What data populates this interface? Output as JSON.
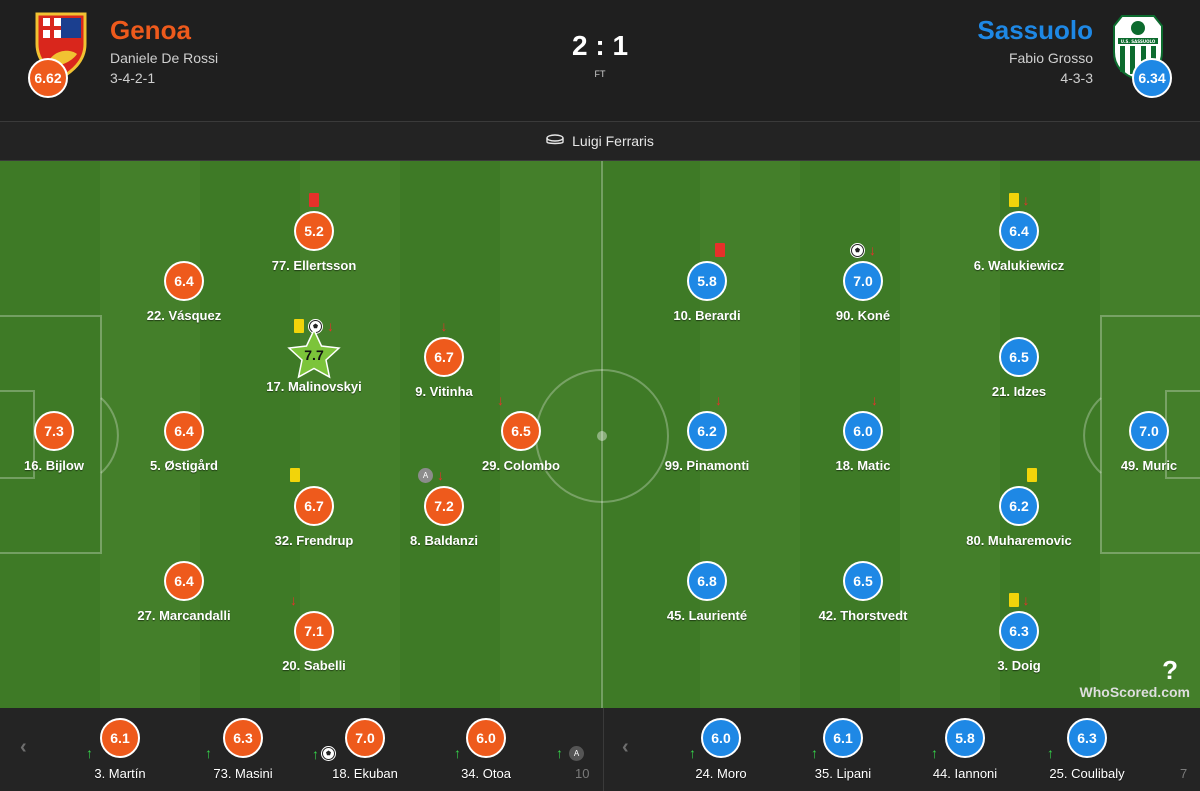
{
  "match": {
    "score": "2 : 1",
    "status": "FT",
    "venue": "Luigi Ferraris"
  },
  "home": {
    "name": "Genoa",
    "coach": "Daniele De Rossi",
    "formation": "3-4-2-1",
    "rating": "6.62",
    "color": "#ee5a1c"
  },
  "away": {
    "name": "Sassuolo",
    "coach": "Fabio Grosso",
    "formation": "4-3-3",
    "rating": "6.34",
    "color": "#1e88e5",
    "crest_text": "U.S. SASSUOLO"
  },
  "home_players": [
    {
      "label": "77. Ellertsson",
      "rating": "5.2",
      "red": true
    },
    {
      "label": "22. Vásquez",
      "rating": "6.4"
    },
    {
      "label": "17. Malinovskyi",
      "rating": "7.7",
      "yellow": true,
      "goal": true,
      "off": true,
      "motm": true
    },
    {
      "label": "9. Vitinha",
      "rating": "6.7",
      "off": true
    },
    {
      "label": "16. Bijlow",
      "rating": "7.3"
    },
    {
      "label": "5. Østigård",
      "rating": "6.4"
    },
    {
      "label": "29. Colombo",
      "rating": "6.5",
      "off": true
    },
    {
      "label": "32. Frendrup",
      "rating": "6.7",
      "yellow": true
    },
    {
      "label": "8. Baldanzi",
      "rating": "7.2",
      "captain": true,
      "off": true
    },
    {
      "label": "27. Marcandalli",
      "rating": "6.4"
    },
    {
      "label": "20. Sabelli",
      "rating": "7.1",
      "off": true
    }
  ],
  "away_players": [
    {
      "label": "6. Walukiewicz",
      "rating": "6.4",
      "yellow": true,
      "off": true
    },
    {
      "label": "10. Berardi",
      "rating": "5.8",
      "red": true
    },
    {
      "label": "90. Koné",
      "rating": "7.0",
      "goal": true,
      "off": true
    },
    {
      "label": "21. Idzes",
      "rating": "6.5"
    },
    {
      "label": "99. Pinamonti",
      "rating": "6.2",
      "off": true
    },
    {
      "label": "18. Matic",
      "rating": "6.0",
      "off": true
    },
    {
      "label": "49. Muric",
      "rating": "7.0"
    },
    {
      "label": "80. Muharemovic",
      "rating": "6.2",
      "yellow": true
    },
    {
      "label": "45. Laurienté",
      "rating": "6.8"
    },
    {
      "label": "42. Thorstvedt",
      "rating": "6.5"
    },
    {
      "label": "3. Doig",
      "rating": "6.3",
      "yellow": true,
      "off": true
    }
  ],
  "home_bench": [
    {
      "label": "3. Martín",
      "rating": "6.1"
    },
    {
      "label": "73. Masini",
      "rating": "6.3"
    },
    {
      "label": "18. Ekuban",
      "rating": "7.0",
      "goal": true
    },
    {
      "label": "34. Otoa",
      "rating": "6.0"
    },
    {
      "label": "10",
      "faded": true
    }
  ],
  "away_bench": [
    {
      "label": "24. Moro",
      "rating": "6.0"
    },
    {
      "label": "35. Lipani",
      "rating": "6.1"
    },
    {
      "label": "44. Iannoni",
      "rating": "5.8"
    },
    {
      "label": "25. Coulibaly",
      "rating": "6.3"
    },
    {
      "label": "7",
      "faded": true
    }
  ],
  "watermark": "WhoScored.com",
  "icons": {
    "down": "↓",
    "up": "↑",
    "prev": "‹",
    "next": "›",
    "captain": "A",
    "stadium": "stadium-icon"
  }
}
